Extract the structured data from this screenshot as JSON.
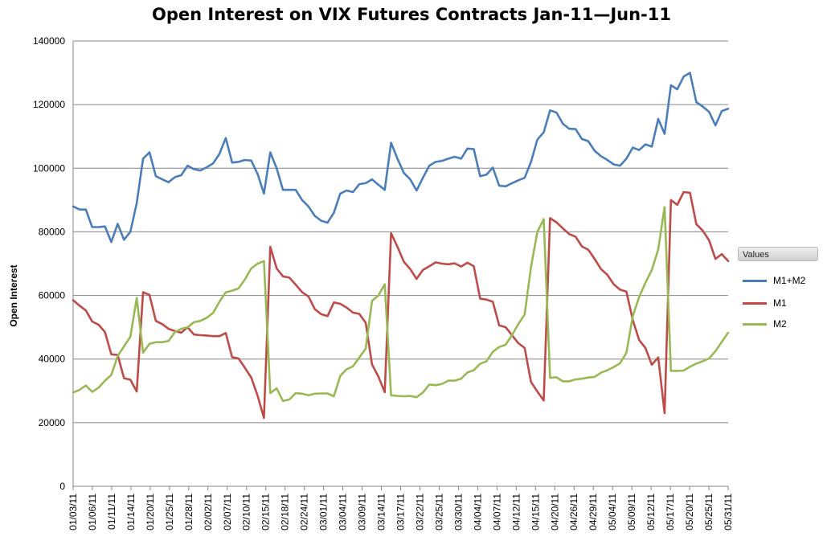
{
  "chart_data": {
    "type": "line",
    "title": "Open Interest on VIX Futures Contracts Jan-11—Jun-11",
    "ylabel": "Open Interest",
    "xlabel": "",
    "ylim": [
      0,
      140000
    ],
    "yticks": [
      "0",
      "20000",
      "40000",
      "60000",
      "80000",
      "100000",
      "120000",
      "140000"
    ],
    "grid": true,
    "legend_title": "Values",
    "legend_position": "right",
    "x_tick_labels": [
      "01/03/11",
      "01/06/11",
      "01/11/11",
      "01/14/11",
      "01/20/11",
      "01/25/11",
      "01/28/11",
      "02/02/11",
      "02/07/11",
      "02/10/11",
      "02/15/11",
      "02/18/11",
      "02/24/11",
      "03/01/11",
      "03/04/11",
      "03/09/11",
      "03/14/11",
      "03/17/11",
      "03/22/11",
      "03/25/11",
      "03/30/11",
      "04/04/11",
      "04/07/11",
      "04/12/11",
      "04/15/11",
      "04/20/11",
      "04/26/11",
      "04/29/11",
      "05/04/11",
      "05/09/11",
      "05/12/11",
      "05/17/11",
      "05/20/11",
      "05/25/11",
      "05/31/11"
    ],
    "series": [
      {
        "name": "M1+M2",
        "color": "#4a7ebb",
        "values": [
          88000,
          87000,
          87000,
          81500,
          81500,
          81700,
          76800,
          82500,
          77500,
          80000,
          89000,
          103000,
          105000,
          97500,
          96500,
          95600,
          97200,
          97800,
          100800,
          99700,
          99300,
          100300,
          101500,
          104500,
          109500,
          101800,
          102000,
          102600,
          102400,
          98200,
          92000,
          105000,
          100000,
          93200,
          93200,
          93200,
          90000,
          88000,
          85000,
          83500,
          82900,
          86000,
          92000,
          93000,
          92500,
          95000,
          95300,
          96500,
          94800,
          93200,
          108000,
          103000,
          98500,
          96500,
          93000,
          97000,
          100800,
          102000,
          102300,
          103000,
          103600,
          103000,
          106200,
          106000,
          97500,
          98000,
          100200,
          94500,
          94300,
          95300,
          96200,
          97000,
          102000,
          109000,
          111300,
          118200,
          117500,
          114000,
          112400,
          112300,
          109200,
          108500,
          105500,
          103800,
          102600,
          101200,
          100800,
          103000,
          106500,
          105700,
          107500,
          106800,
          115500,
          110800,
          126100,
          124800,
          128800,
          130000,
          120800,
          119400,
          117700,
          113500,
          118000,
          118700
        ]
      },
      {
        "name": "M1",
        "color": "#be4b48",
        "values": [
          58500,
          56800,
          55300,
          51800,
          50800,
          48500,
          41500,
          41300,
          34000,
          33500,
          29800,
          61000,
          60200,
          52000,
          51000,
          49500,
          48800,
          48300,
          50000,
          47700,
          47500,
          47400,
          47200,
          47200,
          48200,
          40600,
          40200,
          37300,
          34200,
          28500,
          21500,
          75300,
          68500,
          66000,
          65600,
          63400,
          61000,
          59700,
          55700,
          54100,
          53500,
          57800,
          57400,
          56200,
          54600,
          54200,
          51400,
          38300,
          34500,
          29600,
          79600,
          75300,
          70600,
          68300,
          65200,
          68000,
          69200,
          70400,
          70000,
          69800,
          70100,
          69100,
          70300,
          69200,
          59000,
          58700,
          58000,
          50600,
          50000,
          47500,
          45000,
          43500,
          32800,
          29800,
          27000,
          84300,
          83000,
          81100,
          79300,
          78500,
          75400,
          74400,
          71500,
          68300,
          66500,
          63500,
          61800,
          61200,
          52300,
          46000,
          43500,
          38200,
          40500,
          23000,
          90000,
          88500,
          92500,
          92300,
          82400,
          80400,
          77300,
          71500,
          73000,
          70800
        ]
      },
      {
        "name": "M2",
        "color": "#98b954",
        "values": [
          29500,
          30300,
          31700,
          29700,
          31000,
          33200,
          35000,
          41000,
          44000,
          47000,
          59200,
          42000,
          44800,
          45300,
          45300,
          45700,
          48500,
          49500,
          50000,
          51600,
          52000,
          53000,
          54500,
          58000,
          61000,
          61500,
          62200,
          65000,
          68500,
          70000,
          70800,
          29300,
          30800,
          26800,
          27300,
          29300,
          29100,
          28600,
          29100,
          29200,
          29200,
          28300,
          34700,
          36800,
          37700,
          40500,
          43300,
          58300,
          60000,
          63500,
          28600,
          28400,
          28300,
          28400,
          28000,
          29500,
          32000,
          31800,
          32200,
          33200,
          33200,
          33800,
          35800,
          36500,
          38500,
          39300,
          42300,
          43800,
          44500,
          47500,
          51000,
          54000,
          69000,
          80000,
          84000,
          34100,
          34300,
          33000,
          33000,
          33600,
          33800,
          34200,
          34400,
          35700,
          36500,
          37500,
          38700,
          42000,
          53500,
          59500,
          64000,
          68000,
          74500,
          87800,
          36300,
          36300,
          36400,
          37600,
          38600,
          39300,
          40200,
          42500,
          45400,
          48300
        ]
      }
    ]
  }
}
